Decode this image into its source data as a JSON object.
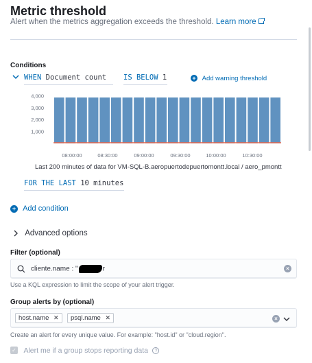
{
  "header": {
    "title": "Metric threshold",
    "subtitle": "Alert when the metrics aggregation exceeds the threshold.",
    "learn_more": "Learn more"
  },
  "conditions": {
    "label": "Conditions",
    "when_keyword": "WHEN",
    "aggregation": "Document count",
    "comparator": "IS BELOW",
    "threshold": "1",
    "add_warning": "Add warning threshold",
    "caption": "Last 200 minutes of data for VM-SQL-B.aeropuertodepuertomontt.local / aero_pmontt",
    "for_the_last": "FOR THE LAST",
    "window_value": "10 minutes"
  },
  "chart_data": {
    "type": "bar",
    "x_ticks": [
      "08:00:00",
      "08:30:00",
      "09:00:00",
      "09:30:00",
      "10:00:00",
      "10:30:00"
    ],
    "y_ticks": [
      "4,000",
      "3,000",
      "2,000",
      "1,000"
    ],
    "values": [
      3840,
      3840,
      3840,
      3840,
      3840,
      3840,
      3840,
      3840,
      3840,
      3840,
      3840,
      3840,
      3840,
      3840,
      3840,
      3840,
      3840,
      3840,
      3840,
      3840
    ],
    "threshold": 1,
    "ylim": [
      0,
      4250
    ],
    "bar_color": "#6092c0",
    "threshold_color": "#e7664c"
  },
  "actions": {
    "add_condition": "Add condition",
    "advanced_options": "Advanced options"
  },
  "filter": {
    "label": "Filter (optional)",
    "value": "cliente.name : \"",
    "value_tail": "r",
    "help": "Use a KQL expression to limit the scope of your alert trigger."
  },
  "group_by": {
    "label": "Group alerts by (optional)",
    "chips": [
      "host.name",
      "psql.name"
    ],
    "help": "Create an alert for every unique value. For example: \"host.id\" or \"cloud.region\"."
  },
  "alert_missing": {
    "label": "Alert me if a group stops reporting data"
  }
}
